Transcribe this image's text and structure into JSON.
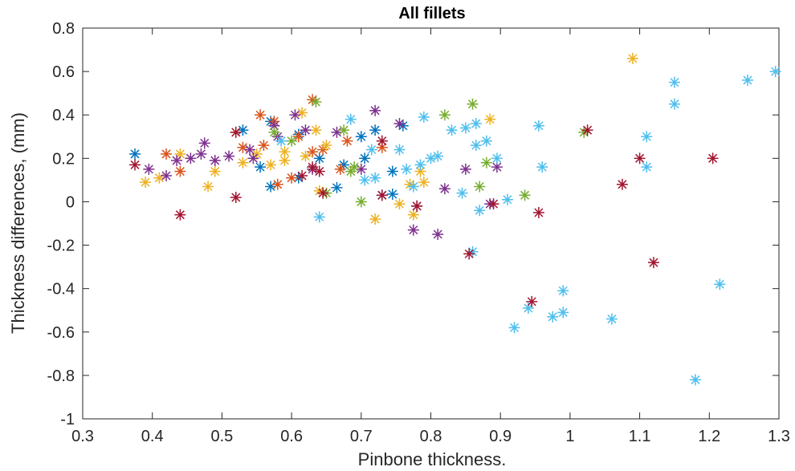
{
  "chart_data": {
    "type": "scatter",
    "title": "All fillets",
    "xlabel": "Pinbone thickness.",
    "ylabel": "Thickness differences, (mm)",
    "xlim": [
      0.3,
      1.3
    ],
    "ylim": [
      -1,
      0.8
    ],
    "xticks": [
      "0.3",
      "0.4",
      "0.5",
      "0.6",
      "0.7",
      "0.8",
      "0.9",
      "1",
      "1.1",
      "1.2",
      "1.3"
    ],
    "yticks": [
      "-1",
      "-0.8",
      "-0.6",
      "-0.4",
      "-0.2",
      "0",
      "0.2",
      "0.4",
      "0.6",
      "0.8"
    ],
    "grid": false,
    "marker": "asterisk",
    "colors": {
      "blue": "#0072bd",
      "orange": "#d95319",
      "yellow": "#edb120",
      "purple": "#7e2f8e",
      "green": "#77ac30",
      "cyan": "#4dbeee",
      "maroon": "#a2142f"
    },
    "series": [
      {
        "color": "blue",
        "points": [
          [
            0.375,
            0.22
          ],
          [
            0.53,
            0.33
          ],
          [
            0.57,
            0.37
          ],
          [
            0.555,
            0.16
          ],
          [
            0.57,
            0.07
          ],
          [
            0.61,
            0.11
          ],
          [
            0.61,
            0.31
          ],
          [
            0.665,
            0.065
          ],
          [
            0.675,
            0.17
          ],
          [
            0.705,
            0.2
          ],
          [
            0.72,
            0.33
          ],
          [
            0.73,
            0.03
          ],
          [
            0.745,
            0.035
          ],
          [
            0.745,
            0.14
          ],
          [
            0.76,
            0.35
          ],
          [
            0.64,
            0.2
          ],
          [
            0.7,
            0.3
          ]
        ]
      },
      {
        "color": "orange",
        "points": [
          [
            0.42,
            0.22
          ],
          [
            0.44,
            0.14
          ],
          [
            0.52,
            0.32
          ],
          [
            0.555,
            0.4
          ],
          [
            0.575,
            0.37
          ],
          [
            0.63,
            0.47
          ],
          [
            0.63,
            0.23
          ],
          [
            0.645,
            0.24
          ],
          [
            0.58,
            0.08
          ],
          [
            0.53,
            0.25
          ],
          [
            0.56,
            0.26
          ],
          [
            0.6,
            0.11
          ],
          [
            0.67,
            0.15
          ],
          [
            0.68,
            0.28
          ],
          [
            0.73,
            0.25
          ],
          [
            0.61,
            0.3
          ]
        ]
      },
      {
        "color": "yellow",
        "points": [
          [
            0.39,
            0.09
          ],
          [
            0.41,
            0.11
          ],
          [
            0.44,
            0.22
          ],
          [
            0.48,
            0.07
          ],
          [
            0.49,
            0.14
          ],
          [
            0.55,
            0.22
          ],
          [
            0.57,
            0.17
          ],
          [
            0.59,
            0.23
          ],
          [
            0.615,
            0.41
          ],
          [
            0.635,
            0.33
          ],
          [
            0.59,
            0.19
          ],
          [
            0.65,
            0.26
          ],
          [
            0.72,
            -0.08
          ],
          [
            0.755,
            -0.01
          ],
          [
            0.77,
            0.08
          ],
          [
            0.775,
            -0.06
          ],
          [
            0.785,
            0.14
          ],
          [
            0.79,
            0.09
          ],
          [
            0.885,
            0.38
          ],
          [
            1.09,
            0.66
          ],
          [
            0.62,
            0.21
          ],
          [
            0.53,
            0.18
          ],
          [
            0.64,
            0.05
          ]
        ]
      },
      {
        "color": "purple",
        "points": [
          [
            0.395,
            0.15
          ],
          [
            0.42,
            0.12
          ],
          [
            0.435,
            0.19
          ],
          [
            0.455,
            0.2
          ],
          [
            0.475,
            0.27
          ],
          [
            0.49,
            0.19
          ],
          [
            0.51,
            0.21
          ],
          [
            0.54,
            0.24
          ],
          [
            0.545,
            0.2
          ],
          [
            0.575,
            0.35
          ],
          [
            0.58,
            0.3
          ],
          [
            0.605,
            0.4
          ],
          [
            0.62,
            0.33
          ],
          [
            0.665,
            0.32
          ],
          [
            0.72,
            0.42
          ],
          [
            0.775,
            -0.13
          ],
          [
            0.78,
            -0.02
          ],
          [
            0.81,
            -0.15
          ],
          [
            0.82,
            0.06
          ],
          [
            0.85,
            0.15
          ],
          [
            0.895,
            0.16
          ],
          [
            0.885,
            -0.01
          ],
          [
            0.755,
            0.36
          ],
          [
            0.7,
            0.15
          ],
          [
            0.47,
            0.22
          ],
          [
            0.63,
            0.15
          ]
        ]
      },
      {
        "color": "green",
        "points": [
          [
            0.635,
            0.46
          ],
          [
            0.675,
            0.33
          ],
          [
            0.685,
            0.14
          ],
          [
            0.69,
            0.16
          ],
          [
            0.7,
            0.0
          ],
          [
            0.82,
            0.4
          ],
          [
            0.86,
            0.45
          ],
          [
            0.87,
            0.07
          ],
          [
            0.88,
            0.18
          ],
          [
            0.935,
            0.03
          ],
          [
            1.02,
            0.32
          ],
          [
            0.6,
            0.28
          ],
          [
            0.65,
            0.04
          ],
          [
            0.575,
            0.32
          ]
        ]
      },
      {
        "color": "cyan",
        "points": [
          [
            0.585,
            0.28
          ],
          [
            0.64,
            -0.07
          ],
          [
            0.685,
            0.38
          ],
          [
            0.705,
            0.1
          ],
          [
            0.72,
            0.11
          ],
          [
            0.755,
            0.24
          ],
          [
            0.765,
            0.15
          ],
          [
            0.775,
            0.07
          ],
          [
            0.785,
            0.17
          ],
          [
            0.79,
            0.39
          ],
          [
            0.8,
            0.2
          ],
          [
            0.81,
            0.21
          ],
          [
            0.83,
            0.33
          ],
          [
            0.845,
            0.04
          ],
          [
            0.85,
            0.34
          ],
          [
            0.865,
            0.36
          ],
          [
            0.865,
            0.26
          ],
          [
            0.87,
            -0.04
          ],
          [
            0.88,
            0.28
          ],
          [
            0.895,
            0.2
          ],
          [
            0.91,
            0.01
          ],
          [
            0.92,
            -0.58
          ],
          [
            0.94,
            -0.49
          ],
          [
            0.955,
            0.35
          ],
          [
            0.96,
            0.16
          ],
          [
            0.975,
            -0.53
          ],
          [
            0.99,
            -0.41
          ],
          [
            0.99,
            -0.51
          ],
          [
            1.06,
            -0.54
          ],
          [
            1.11,
            0.3
          ],
          [
            1.11,
            0.16
          ],
          [
            1.15,
            0.55
          ],
          [
            1.15,
            0.45
          ],
          [
            1.18,
            -0.82
          ],
          [
            1.215,
            -0.38
          ],
          [
            1.255,
            0.56
          ],
          [
            1.295,
            0.6
          ],
          [
            0.86,
            -0.23
          ],
          [
            0.715,
            0.24
          ]
        ]
      },
      {
        "color": "maroon",
        "points": [
          [
            0.375,
            0.17
          ],
          [
            0.44,
            -0.06
          ],
          [
            0.52,
            0.32
          ],
          [
            0.52,
            0.02
          ],
          [
            0.615,
            0.12
          ],
          [
            0.64,
            0.14
          ],
          [
            0.645,
            0.04
          ],
          [
            0.73,
            0.28
          ],
          [
            0.78,
            -0.02
          ],
          [
            0.855,
            -0.24
          ],
          [
            0.89,
            -0.01
          ],
          [
            0.945,
            -0.46
          ],
          [
            0.955,
            -0.05
          ],
          [
            1.025,
            0.33
          ],
          [
            1.075,
            0.08
          ],
          [
            1.1,
            0.2
          ],
          [
            1.12,
            -0.28
          ],
          [
            1.205,
            0.2
          ],
          [
            0.73,
            0.03
          ],
          [
            0.63,
            0.16
          ]
        ]
      }
    ]
  }
}
